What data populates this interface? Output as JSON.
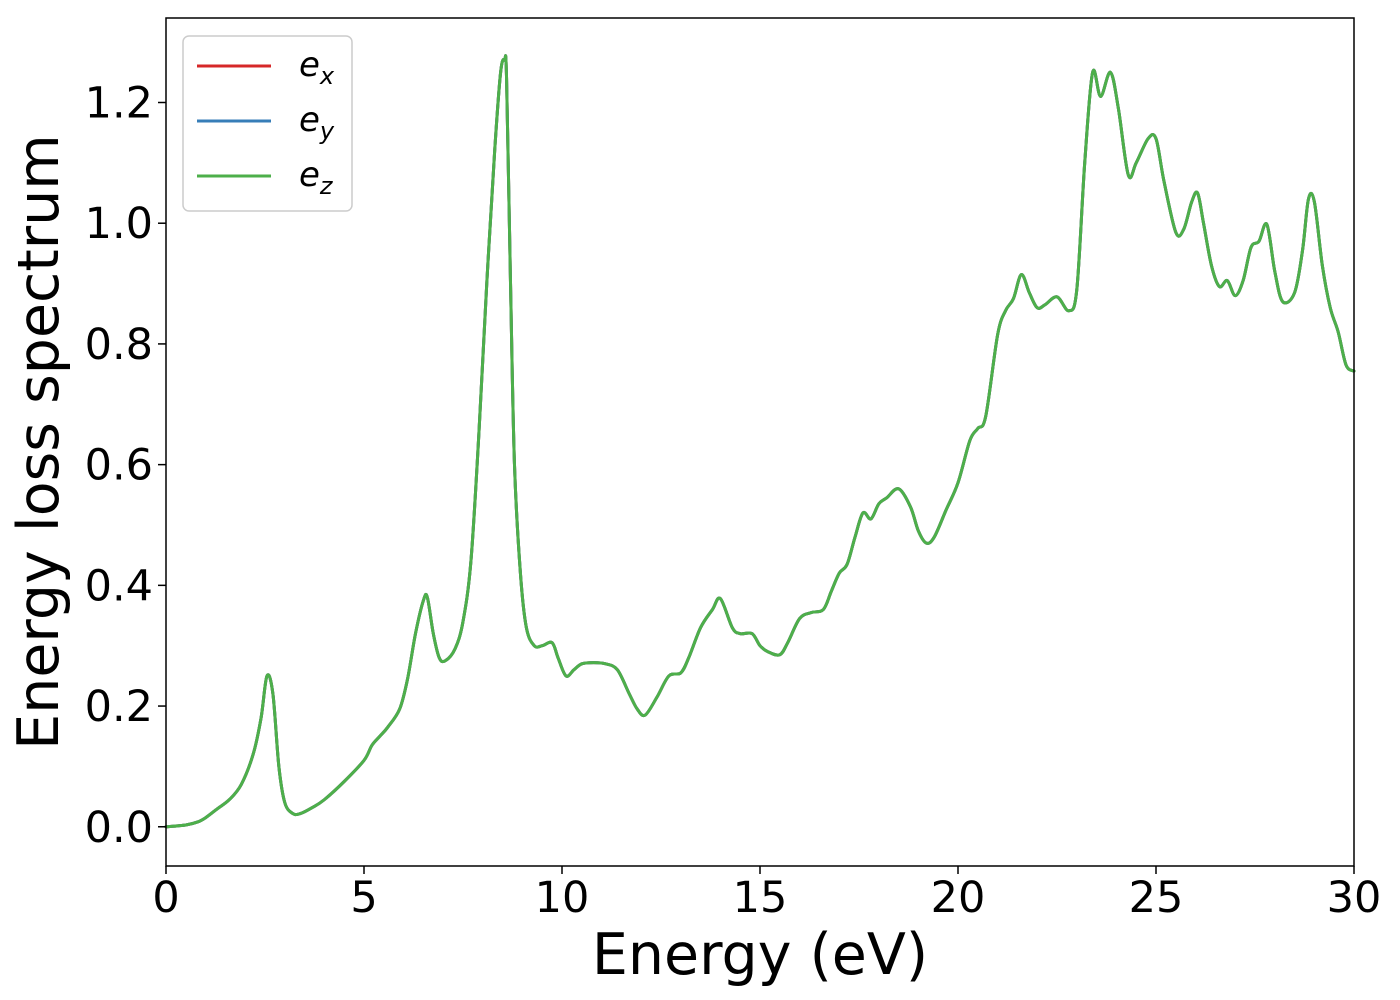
{
  "chart_data": {
    "type": "line",
    "xlabel": "Energy (eV)",
    "ylabel": "Energy loss spectrum",
    "xlim": [
      0,
      30
    ],
    "ylim": [
      -0.065,
      1.34
    ],
    "x_ticks": [
      0,
      5,
      10,
      15,
      20,
      25,
      30
    ],
    "y_ticks": [
      0.0,
      0.2,
      0.4,
      0.6,
      0.8,
      1.0,
      1.2
    ],
    "x_tick_labels": [
      "0",
      "5",
      "10",
      "15",
      "20",
      "25",
      "30"
    ],
    "y_tick_labels": [
      "0.0",
      "0.2",
      "0.4",
      "0.6",
      "0.8",
      "1.0",
      "1.2"
    ],
    "grid": false,
    "legend_position": "top-left",
    "x": [
      0.0,
      0.5,
      0.8,
      1.0,
      1.3,
      1.6,
      1.9,
      2.2,
      2.4,
      2.55,
      2.7,
      2.85,
      3.0,
      3.2,
      3.4,
      3.7,
      4.0,
      4.5,
      5.0,
      5.2,
      5.4,
      5.6,
      5.9,
      6.1,
      6.3,
      6.5,
      6.6,
      6.75,
      6.9,
      7.05,
      7.3,
      7.5,
      7.7,
      7.9,
      8.1,
      8.3,
      8.45,
      8.55,
      8.6,
      8.7,
      8.8,
      8.95,
      9.1,
      9.3,
      9.5,
      9.75,
      9.9,
      10.1,
      10.3,
      10.5,
      10.8,
      11.1,
      11.4,
      11.7,
      11.9,
      12.1,
      12.4,
      12.7,
      13.0,
      13.2,
      13.5,
      13.8,
      14.0,
      14.3,
      14.5,
      14.8,
      15.0,
      15.2,
      15.5,
      15.7,
      16.0,
      16.3,
      16.6,
      16.8,
      17.0,
      17.2,
      17.4,
      17.6,
      17.8,
      18.0,
      18.2,
      18.5,
      18.8,
      19.0,
      19.2,
      19.4,
      19.7,
      20.0,
      20.3,
      20.5,
      20.7,
      21.0,
      21.2,
      21.4,
      21.6,
      21.8,
      22.0,
      22.2,
      22.5,
      22.8,
      23.0,
      23.2,
      23.4,
      23.6,
      23.85,
      24.05,
      24.3,
      24.5,
      24.8,
      25.0,
      25.2,
      25.5,
      25.7,
      25.9,
      26.05,
      26.2,
      26.4,
      26.6,
      26.8,
      27.0,
      27.2,
      27.4,
      27.6,
      27.8,
      28.0,
      28.2,
      28.5,
      28.7,
      28.85,
      29.0,
      29.2,
      29.4,
      29.6,
      29.8,
      30.0
    ],
    "series": [
      {
        "name": "e_x",
        "color": "#d62728",
        "values": [
          0.0,
          0.003,
          0.008,
          0.015,
          0.03,
          0.045,
          0.07,
          0.12,
          0.18,
          0.25,
          0.22,
          0.1,
          0.04,
          0.022,
          0.022,
          0.032,
          0.045,
          0.075,
          0.11,
          0.135,
          0.15,
          0.165,
          0.195,
          0.245,
          0.32,
          0.375,
          0.38,
          0.32,
          0.28,
          0.275,
          0.295,
          0.34,
          0.44,
          0.65,
          0.9,
          1.12,
          1.25,
          1.27,
          1.24,
          0.9,
          0.6,
          0.42,
          0.33,
          0.3,
          0.3,
          0.305,
          0.28,
          0.25,
          0.26,
          0.27,
          0.272,
          0.27,
          0.26,
          0.22,
          0.195,
          0.185,
          0.215,
          0.25,
          0.255,
          0.28,
          0.33,
          0.36,
          0.378,
          0.33,
          0.32,
          0.32,
          0.3,
          0.29,
          0.285,
          0.305,
          0.345,
          0.355,
          0.36,
          0.39,
          0.42,
          0.435,
          0.48,
          0.52,
          0.51,
          0.535,
          0.545,
          0.56,
          0.53,
          0.49,
          0.47,
          0.48,
          0.525,
          0.57,
          0.64,
          0.66,
          0.68,
          0.815,
          0.855,
          0.875,
          0.915,
          0.885,
          0.86,
          0.865,
          0.878,
          0.855,
          0.89,
          1.1,
          1.25,
          1.21,
          1.25,
          1.19,
          1.08,
          1.1,
          1.14,
          1.14,
          1.07,
          0.985,
          0.99,
          1.035,
          1.05,
          1.0,
          0.93,
          0.895,
          0.905,
          0.88,
          0.905,
          0.96,
          0.97,
          0.998,
          0.92,
          0.87,
          0.885,
          0.955,
          1.04,
          1.035,
          0.93,
          0.86,
          0.82,
          0.765,
          0.755
        ]
      },
      {
        "name": "e_y",
        "color": "#377eb8",
        "values": [
          0.0,
          0.003,
          0.008,
          0.015,
          0.03,
          0.045,
          0.07,
          0.12,
          0.18,
          0.25,
          0.22,
          0.1,
          0.04,
          0.022,
          0.022,
          0.032,
          0.045,
          0.075,
          0.11,
          0.135,
          0.15,
          0.165,
          0.195,
          0.245,
          0.32,
          0.375,
          0.38,
          0.32,
          0.28,
          0.275,
          0.295,
          0.34,
          0.44,
          0.65,
          0.9,
          1.12,
          1.25,
          1.27,
          1.24,
          0.9,
          0.6,
          0.42,
          0.33,
          0.3,
          0.3,
          0.305,
          0.28,
          0.25,
          0.26,
          0.27,
          0.272,
          0.27,
          0.26,
          0.22,
          0.195,
          0.185,
          0.215,
          0.25,
          0.255,
          0.28,
          0.33,
          0.36,
          0.378,
          0.33,
          0.32,
          0.32,
          0.3,
          0.29,
          0.285,
          0.305,
          0.345,
          0.355,
          0.36,
          0.39,
          0.42,
          0.435,
          0.48,
          0.52,
          0.51,
          0.535,
          0.545,
          0.56,
          0.53,
          0.49,
          0.47,
          0.48,
          0.525,
          0.57,
          0.64,
          0.66,
          0.68,
          0.815,
          0.855,
          0.875,
          0.915,
          0.885,
          0.86,
          0.865,
          0.878,
          0.855,
          0.89,
          1.1,
          1.25,
          1.21,
          1.25,
          1.19,
          1.08,
          1.1,
          1.14,
          1.14,
          1.07,
          0.985,
          0.99,
          1.035,
          1.05,
          1.0,
          0.93,
          0.895,
          0.905,
          0.88,
          0.905,
          0.96,
          0.97,
          0.998,
          0.92,
          0.87,
          0.885,
          0.955,
          1.04,
          1.035,
          0.93,
          0.86,
          0.82,
          0.765,
          0.755
        ]
      },
      {
        "name": "e_z",
        "color": "#4daf4a",
        "values": [
          0.0,
          0.003,
          0.008,
          0.015,
          0.03,
          0.045,
          0.07,
          0.12,
          0.18,
          0.25,
          0.22,
          0.1,
          0.04,
          0.022,
          0.022,
          0.032,
          0.045,
          0.075,
          0.11,
          0.135,
          0.15,
          0.165,
          0.195,
          0.245,
          0.32,
          0.375,
          0.38,
          0.32,
          0.28,
          0.275,
          0.295,
          0.34,
          0.44,
          0.65,
          0.9,
          1.12,
          1.25,
          1.27,
          1.24,
          0.9,
          0.6,
          0.42,
          0.33,
          0.3,
          0.3,
          0.305,
          0.28,
          0.25,
          0.26,
          0.27,
          0.272,
          0.27,
          0.26,
          0.22,
          0.195,
          0.185,
          0.215,
          0.25,
          0.255,
          0.28,
          0.33,
          0.36,
          0.378,
          0.33,
          0.32,
          0.32,
          0.3,
          0.29,
          0.285,
          0.305,
          0.345,
          0.355,
          0.36,
          0.39,
          0.42,
          0.435,
          0.48,
          0.52,
          0.51,
          0.535,
          0.545,
          0.56,
          0.53,
          0.49,
          0.47,
          0.48,
          0.525,
          0.57,
          0.64,
          0.66,
          0.68,
          0.815,
          0.855,
          0.875,
          0.915,
          0.885,
          0.86,
          0.865,
          0.878,
          0.855,
          0.89,
          1.1,
          1.25,
          1.21,
          1.25,
          1.19,
          1.08,
          1.1,
          1.14,
          1.14,
          1.07,
          0.985,
          0.99,
          1.035,
          1.05,
          1.0,
          0.93,
          0.895,
          0.905,
          0.88,
          0.905,
          0.96,
          0.97,
          0.998,
          0.92,
          0.87,
          0.885,
          0.955,
          1.04,
          1.035,
          0.93,
          0.86,
          0.82,
          0.765,
          0.755
        ]
      }
    ],
    "legend": [
      {
        "base": "e",
        "sub": "x",
        "color": "#d62728"
      },
      {
        "base": "e",
        "sub": "y",
        "color": "#377eb8"
      },
      {
        "base": "e",
        "sub": "z",
        "color": "#4daf4a"
      }
    ]
  }
}
